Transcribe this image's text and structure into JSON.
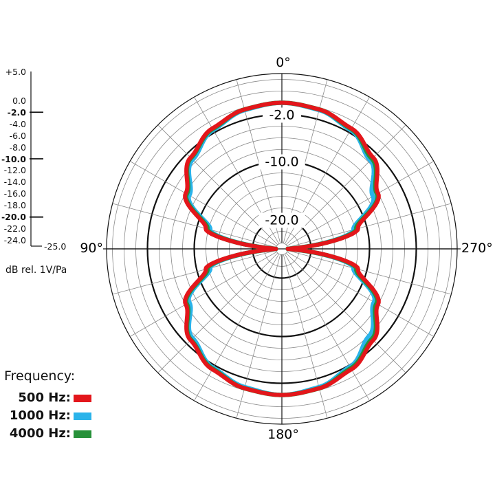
{
  "chart_data": {
    "type": "polar",
    "angle_labels": [
      "0°",
      "90°",
      "180°",
      "270°"
    ],
    "ring_labels": [
      "-2.0",
      "-10.0",
      "-20.0"
    ],
    "rlim_db": [
      -25.0,
      5.0
    ],
    "scale_labels": [
      "+5.0",
      "0.0",
      "-2.0",
      "-4.0",
      "-6.0",
      "-8.0",
      "-10.0",
      "-12.0",
      "-14.0",
      "-16.0",
      "-18.0",
      "-20.0",
      "-22.0",
      "-24.0",
      "-25.0"
    ],
    "scale_values": [
      5,
      0,
      -2,
      -4,
      -6,
      -8,
      -10,
      -12,
      -14,
      -16,
      -18,
      -20,
      -22,
      -24,
      -25
    ],
    "major_ticks": [
      -2,
      -10,
      -20
    ],
    "unit_label": "dB rel. 1V/Pa",
    "grid": true,
    "legend": {
      "title": "Frequency:",
      "position": "bottom-left"
    },
    "series": [
      {
        "name": "500 Hz:",
        "color": "#e3161b",
        "angles_deg": [
          0,
          15,
          30,
          45,
          60,
          75,
          90,
          105,
          120,
          135,
          150,
          165,
          180,
          195,
          210,
          225,
          240,
          255,
          270,
          285,
          300,
          315,
          330,
          345
        ],
        "values_db": [
          0.0,
          -0.3,
          -1.2,
          -2.9,
          -6.0,
          -11.5,
          -24.0,
          -11.5,
          -6.0,
          -2.9,
          -1.2,
          -0.3,
          0.0,
          -0.3,
          -1.2,
          -2.9,
          -6.0,
          -11.5,
          -24.0,
          -11.5,
          -6.0,
          -2.9,
          -1.2,
          -0.3
        ]
      },
      {
        "name": "1000 Hz:",
        "color": "#2ab3ea",
        "angles_deg": [
          0,
          15,
          30,
          45,
          60,
          75,
          90,
          105,
          120,
          135,
          150,
          165,
          180,
          195,
          210,
          225,
          240,
          255,
          270,
          285,
          300,
          315,
          330,
          345
        ],
        "values_db": [
          0.0,
          -0.4,
          -1.5,
          -3.4,
          -6.7,
          -12.3,
          -24.0,
          -12.3,
          -6.7,
          -3.4,
          -1.5,
          -0.5,
          0.0,
          -0.5,
          -1.7,
          -3.9,
          -6.8,
          -12.3,
          -24.0,
          -12.3,
          -7.0,
          -3.6,
          -1.5,
          -0.4
        ]
      },
      {
        "name": "4000 Hz:",
        "color": "#27913a",
        "angles_deg": [
          0,
          15,
          30,
          45,
          60,
          75,
          90,
          105,
          120,
          135,
          150,
          165,
          180,
          195,
          210,
          225,
          240,
          255,
          270,
          285,
          300,
          315,
          330,
          345
        ],
        "values_db": [
          0.0,
          -0.3,
          -1.3,
          -3.0,
          -6.2,
          -11.8,
          -24.0,
          -11.8,
          -6.2,
          -3.0,
          -1.3,
          -0.3,
          0.0,
          -0.3,
          -1.4,
          -3.2,
          -6.3,
          -11.8,
          -24.0,
          -11.8,
          -6.2,
          -3.2,
          -1.3,
          -0.3
        ]
      }
    ]
  }
}
